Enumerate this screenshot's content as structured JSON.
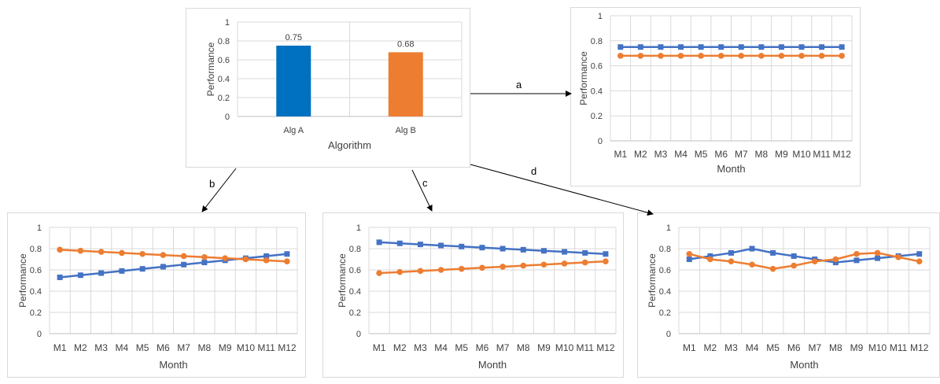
{
  "colors": {
    "alg_a": "#4472C4",
    "alg_a_bar": "#0070C0",
    "alg_b": "#ED7D31",
    "grid": "#d9d9d9",
    "axis": "#404040",
    "arrow": "#000000"
  },
  "arrows": {
    "a": "a",
    "b": "b",
    "c": "c",
    "d": "d"
  },
  "chart_data": [
    {
      "id": "bar",
      "type": "bar",
      "categories": [
        "Alg A",
        "Alg B"
      ],
      "values": [
        0.75,
        0.68
      ],
      "data_labels": [
        "0.75",
        "0.68"
      ],
      "xlabel": "Algorithm",
      "ylabel": "Performance",
      "ylim": [
        0,
        1
      ],
      "yticks": [
        "0",
        "0.2",
        "0.4",
        "0.6",
        "0.8",
        "1"
      ],
      "grid": true
    },
    {
      "id": "a",
      "type": "line",
      "x": [
        "M1",
        "M2",
        "M3",
        "M4",
        "M5",
        "M6",
        "M7",
        "M8",
        "M9",
        "M10",
        "M11",
        "M12"
      ],
      "series": [
        {
          "values": [
            0.75,
            0.75,
            0.75,
            0.75,
            0.75,
            0.75,
            0.75,
            0.75,
            0.75,
            0.75,
            0.75,
            0.75
          ],
          "marker": "square",
          "color_key": "alg_a"
        },
        {
          "values": [
            0.68,
            0.68,
            0.68,
            0.68,
            0.68,
            0.68,
            0.68,
            0.68,
            0.68,
            0.68,
            0.68,
            0.68
          ],
          "marker": "circle",
          "color_key": "alg_b"
        }
      ],
      "xlabel": "Month",
      "ylabel": "Performance",
      "ylim": [
        0,
        1
      ],
      "yticks": [
        "0",
        "0.2",
        "0.4",
        "0.6",
        "0.8",
        "1"
      ],
      "grid": true
    },
    {
      "id": "b",
      "type": "line",
      "x": [
        "M1",
        "M2",
        "M3",
        "M4",
        "M5",
        "M6",
        "M7",
        "M8",
        "M9",
        "M10",
        "M11",
        "M12"
      ],
      "series": [
        {
          "values": [
            0.53,
            0.55,
            0.57,
            0.59,
            0.61,
            0.63,
            0.65,
            0.67,
            0.69,
            0.71,
            0.73,
            0.75
          ],
          "marker": "square",
          "color_key": "alg_a"
        },
        {
          "values": [
            0.79,
            0.78,
            0.77,
            0.76,
            0.75,
            0.74,
            0.73,
            0.72,
            0.71,
            0.7,
            0.69,
            0.68
          ],
          "marker": "circle",
          "color_key": "alg_b"
        }
      ],
      "xlabel": "Month",
      "ylabel": "Performance",
      "ylim": [
        0,
        1
      ],
      "yticks": [
        "0",
        "0.2",
        "0.4",
        "0.6",
        "0.8",
        "1"
      ],
      "grid": true
    },
    {
      "id": "c",
      "type": "line",
      "x": [
        "M1",
        "M2",
        "M3",
        "M4",
        "M5",
        "M6",
        "M7",
        "M8",
        "M9",
        "M10",
        "M11",
        "M12"
      ],
      "series": [
        {
          "values": [
            0.86,
            0.85,
            0.84,
            0.83,
            0.82,
            0.81,
            0.8,
            0.79,
            0.78,
            0.77,
            0.76,
            0.75
          ],
          "marker": "square",
          "color_key": "alg_a"
        },
        {
          "values": [
            0.57,
            0.58,
            0.59,
            0.6,
            0.61,
            0.62,
            0.63,
            0.64,
            0.65,
            0.66,
            0.67,
            0.68
          ],
          "marker": "circle",
          "color_key": "alg_b"
        }
      ],
      "xlabel": "Month",
      "ylabel": "Performance",
      "ylim": [
        0,
        1
      ],
      "yticks": [
        "0",
        "0.2",
        "0.4",
        "0.6",
        "0.8",
        "1"
      ],
      "grid": true
    },
    {
      "id": "d",
      "type": "line",
      "x": [
        "M1",
        "M2",
        "M3",
        "M4",
        "M5",
        "M6",
        "M7",
        "M8",
        "M9",
        "M10",
        "M11",
        "M12"
      ],
      "series": [
        {
          "values": [
            0.7,
            0.73,
            0.76,
            0.8,
            0.76,
            0.73,
            0.7,
            0.67,
            0.69,
            0.71,
            0.73,
            0.75
          ],
          "marker": "square",
          "color_key": "alg_a"
        },
        {
          "values": [
            0.75,
            0.7,
            0.68,
            0.65,
            0.61,
            0.64,
            0.68,
            0.7,
            0.75,
            0.76,
            0.72,
            0.68
          ],
          "marker": "circle",
          "color_key": "alg_b"
        }
      ],
      "xlabel": "Month",
      "ylabel": "Performance",
      "ylim": [
        0,
        1
      ],
      "yticks": [
        "0",
        "0.2",
        "0.4",
        "0.6",
        "0.8",
        "1"
      ],
      "grid": true
    }
  ]
}
